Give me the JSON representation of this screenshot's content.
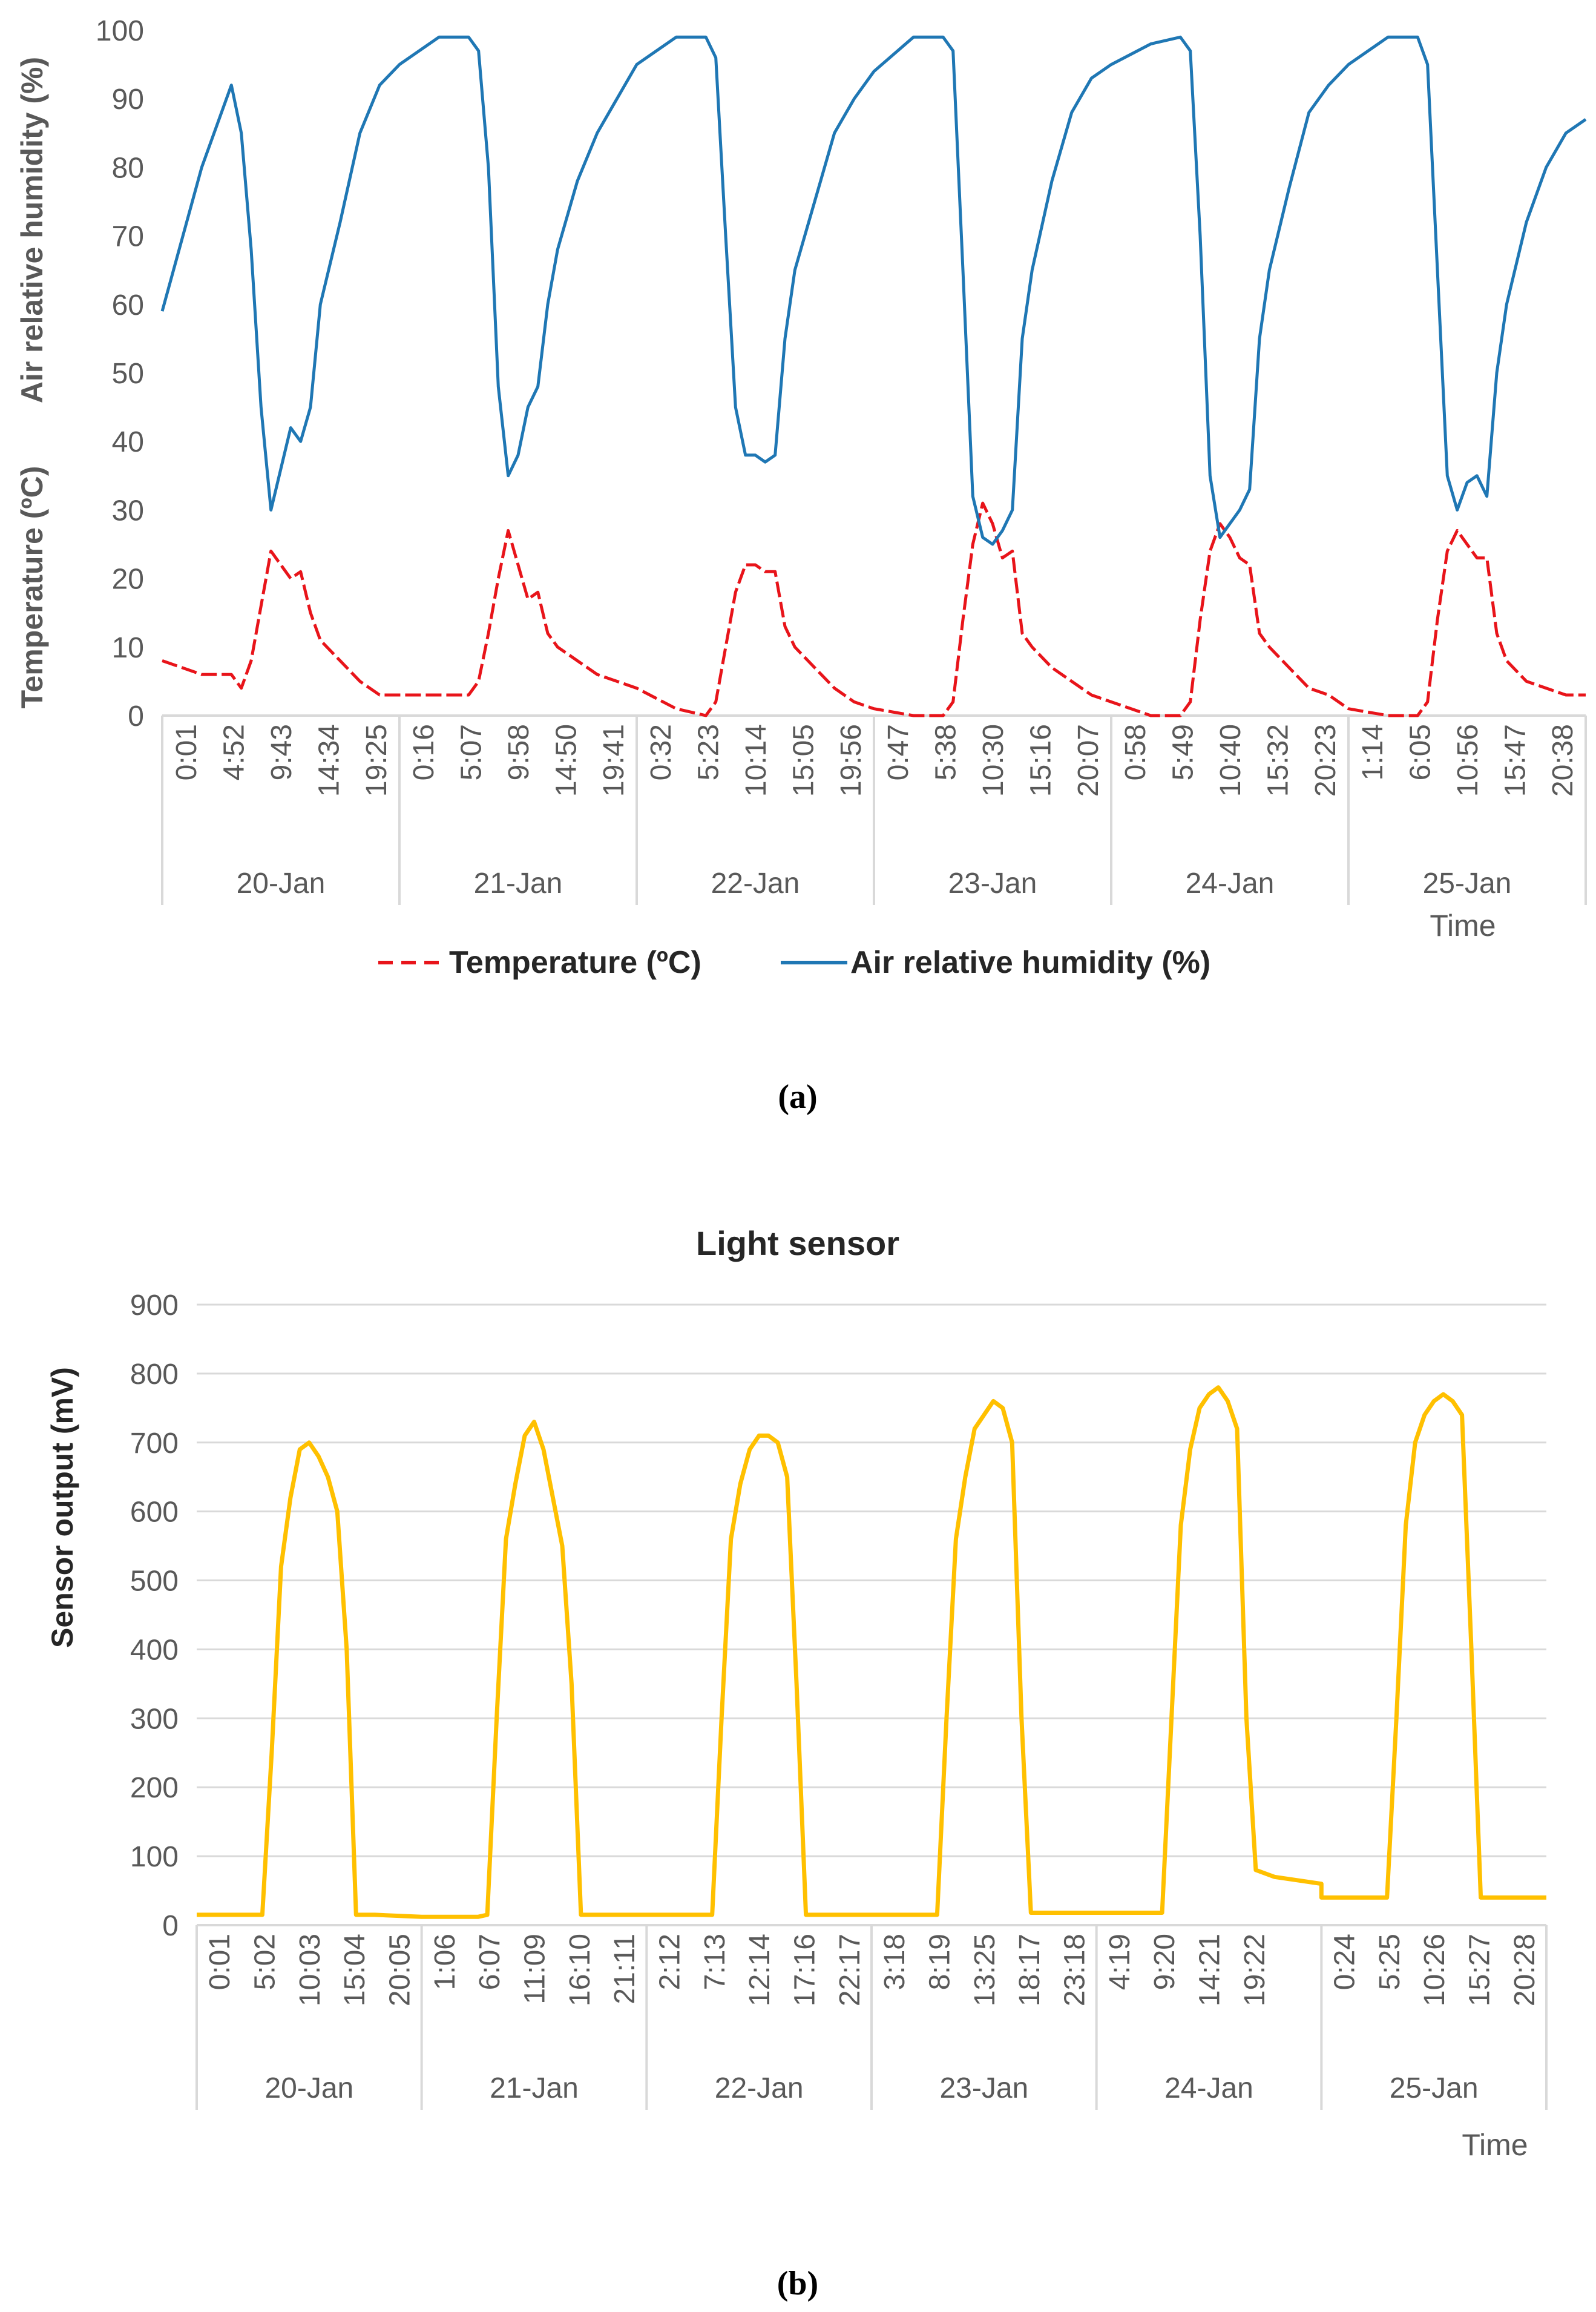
{
  "chart_data": [
    {
      "type": "line",
      "panel_caption": "(a)",
      "title": "",
      "xlabel": "Time",
      "ylabel_top": "Air relative humidity (%)",
      "ylabel_bottom": "Temperature (ºC)",
      "ylim": [
        0,
        100
      ],
      "yticks": [
        "0",
        "10",
        "20",
        "30",
        "40",
        "50",
        "60",
        "70",
        "80",
        "90",
        "100"
      ],
      "time_ticks": [
        [
          "0:01",
          "4:52",
          "9:43",
          "14:34",
          "19:25"
        ],
        [
          "0:16",
          "5:07",
          "9:58",
          "14:50",
          "19:41"
        ],
        [
          "0:32",
          "5:23",
          "10:14",
          "15:05",
          "19:56"
        ],
        [
          "0:47",
          "5:38",
          "10:30",
          "15:16",
          "20:07"
        ],
        [
          "0:58",
          "5:49",
          "10:40",
          "15:32",
          "20:23"
        ],
        [
          "1:14",
          "6:05",
          "10:56",
          "15:47",
          "20:38"
        ]
      ],
      "days": [
        "20-Jan",
        "21-Jan",
        "22-Jan",
        "23-Jan",
        "24-Jan",
        "25-Jan"
      ],
      "x_hours": [
        0,
        4,
        7,
        8,
        9,
        10,
        11,
        12,
        13,
        14,
        15,
        16,
        18,
        20,
        22,
        24
      ],
      "series": [
        {
          "name": "Temperature (ºC)",
          "style": "dashed",
          "color": "#e8141a",
          "daily_values": [
            [
              8,
              6,
              6,
              4,
              8,
              16,
              24,
              22,
              20,
              21,
              15,
              11,
              8,
              5,
              3,
              3
            ],
            [
              3,
              3,
              3,
              5,
              12,
              20,
              27,
              22,
              17,
              18,
              12,
              10,
              8,
              6,
              5,
              4
            ],
            [
              4,
              1,
              0,
              2,
              10,
              18,
              22,
              22,
              21,
              21,
              13,
              10,
              7,
              4,
              2,
              1
            ],
            [
              1,
              0,
              0,
              2,
              14,
              25,
              31,
              28,
              23,
              24,
              12,
              10,
              7,
              5,
              3,
              2
            ],
            [
              2,
              0,
              0,
              2,
              14,
              24,
              28,
              26,
              23,
              22,
              12,
              10,
              7,
              4,
              3,
              1
            ],
            [
              1,
              0,
              0,
              2,
              14,
              24,
              27,
              25,
              23,
              23,
              12,
              8,
              5,
              4,
              3,
              3
            ]
          ]
        },
        {
          "name": "Air relative humidity (%)",
          "style": "solid",
          "color": "#1f77b4",
          "daily_values": [
            [
              59,
              80,
              92,
              85,
              68,
              45,
              30,
              36,
              42,
              40,
              45,
              60,
              72,
              85,
              92,
              95
            ],
            [
              95,
              99,
              99,
              97,
              80,
              48,
              35,
              38,
              45,
              48,
              60,
              68,
              78,
              85,
              90,
              95
            ],
            [
              95,
              99,
              99,
              96,
              70,
              45,
              38,
              38,
              37,
              38,
              55,
              65,
              75,
              85,
              90,
              94
            ],
            [
              94,
              99,
              99,
              97,
              65,
              32,
              26,
              25,
              27,
              30,
              55,
              65,
              78,
              88,
              93,
              95
            ],
            [
              95,
              98,
              99,
              97,
              70,
              35,
              26,
              28,
              30,
              33,
              55,
              65,
              77,
              88,
              92,
              95
            ],
            [
              95,
              99,
              99,
              95,
              65,
              35,
              30,
              34,
              35,
              32,
              50,
              60,
              72,
              80,
              85,
              87
            ]
          ]
        }
      ],
      "legend_position": "bottom"
    },
    {
      "type": "line",
      "panel_caption": "(b)",
      "title": "Light sensor",
      "xlabel": "Time",
      "ylabel": "Sensor output (mV)",
      "ylim": [
        0,
        900
      ],
      "yticks": [
        "0",
        "100",
        "200",
        "300",
        "400",
        "500",
        "600",
        "700",
        "800",
        "900"
      ],
      "grid": true,
      "time_ticks": [
        [
          "0:01",
          "5:02",
          "10:03",
          "15:04",
          "20:05"
        ],
        [
          "1:06",
          "6:07",
          "11:09",
          "16:10",
          "21:11"
        ],
        [
          "2:12",
          "7:13",
          "12:14",
          "17:16",
          "22:17"
        ],
        [
          "3:18",
          "8:19",
          "13:25",
          "18:17",
          "23:18"
        ],
        [
          "4:19",
          "9:20",
          "14:21",
          "19:22"
        ],
        [
          "0:24",
          "5:25",
          "10:26",
          "15:27",
          "20:28"
        ]
      ],
      "days": [
        "20-Jan",
        "21-Jan",
        "22-Jan",
        "23-Jan",
        "24-Jan",
        "25-Jan"
      ],
      "x_hours": [
        0,
        6,
        7,
        8,
        9,
        10,
        11,
        12,
        13,
        14,
        15,
        16,
        17,
        18,
        19,
        24
      ],
      "series": [
        {
          "name": "Light sensor",
          "color": "#ffc000",
          "daily_values": [
            [
              15,
              15,
              15,
              250,
              520,
              620,
              690,
              700,
              680,
              650,
              600,
              400,
              15,
              15,
              15,
              12
            ],
            [
              12,
              12,
              15,
              300,
              560,
              640,
              710,
              730,
              690,
              620,
              550,
              350,
              15,
              15,
              15,
              15
            ],
            [
              15,
              15,
              15,
              300,
              560,
              640,
              690,
              710,
              710,
              700,
              650,
              350,
              15,
              15,
              15,
              15
            ],
            [
              15,
              15,
              15,
              300,
              560,
              650,
              720,
              740,
              760,
              750,
              700,
              300,
              18,
              18,
              18,
              18
            ],
            [
              18,
              18,
              18,
              300,
              580,
              690,
              750,
              770,
              780,
              760,
              720,
              300,
              80,
              75,
              70,
              60
            ],
            [
              40,
              40,
              40,
              300,
              580,
              700,
              740,
              760,
              770,
              760,
              740,
              400,
              40,
              40,
              40,
              40
            ]
          ]
        }
      ],
      "legend_position": "none"
    }
  ]
}
